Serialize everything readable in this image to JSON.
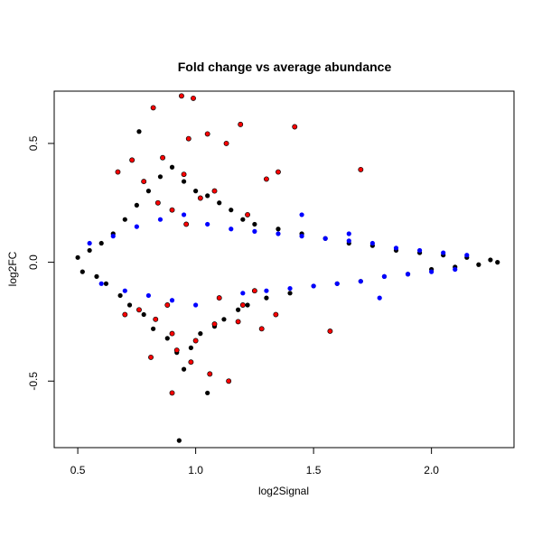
{
  "chart_data": {
    "type": "scatter",
    "title": "Fold change vs average abundance",
    "xlabel": "log2Signal",
    "ylabel": "log2FC",
    "xlim": [
      0.4,
      2.35
    ],
    "ylim": [
      -0.78,
      0.72
    ],
    "x_ticks": [
      {
        "value": 0.5,
        "label": "0.5"
      },
      {
        "value": 1.0,
        "label": "1.0"
      },
      {
        "value": 1.5,
        "label": "1.5"
      },
      {
        "value": 2.0,
        "label": "2.0"
      }
    ],
    "y_ticks": [
      {
        "value": -0.5,
        "label": "-0.5"
      },
      {
        "value": 0.0,
        "label": "0.0"
      },
      {
        "value": 0.5,
        "label": "0.5"
      }
    ],
    "grid": false,
    "legend": "none",
    "colors": {
      "black": "#000000",
      "blue": "#0000ff",
      "red": "#ff0000"
    },
    "series": [
      {
        "color": "#000000",
        "points": [
          [
            0.5,
            0.02
          ],
          [
            0.52,
            -0.04
          ],
          [
            0.55,
            0.05
          ],
          [
            0.58,
            -0.06
          ],
          [
            0.6,
            0.08
          ],
          [
            0.62,
            -0.09
          ],
          [
            0.65,
            0.12
          ],
          [
            0.68,
            -0.14
          ],
          [
            0.7,
            0.18
          ],
          [
            0.72,
            -0.18
          ],
          [
            0.75,
            0.24
          ],
          [
            0.78,
            -0.22
          ],
          [
            0.8,
            0.3
          ],
          [
            0.82,
            -0.28
          ],
          [
            0.85,
            0.36
          ],
          [
            0.88,
            -0.32
          ],
          [
            0.9,
            0.4
          ],
          [
            0.92,
            -0.38
          ],
          [
            0.95,
            0.34
          ],
          [
            0.98,
            -0.36
          ],
          [
            1.0,
            0.3
          ],
          [
            1.02,
            -0.3
          ],
          [
            1.05,
            0.28
          ],
          [
            1.08,
            -0.27
          ],
          [
            1.1,
            0.25
          ],
          [
            1.12,
            -0.24
          ],
          [
            1.15,
            0.22
          ],
          [
            1.18,
            -0.2
          ],
          [
            1.2,
            0.18
          ],
          [
            1.22,
            -0.18
          ],
          [
            1.25,
            0.16
          ],
          [
            1.3,
            -0.15
          ],
          [
            1.35,
            0.14
          ],
          [
            1.4,
            -0.13
          ],
          [
            1.45,
            0.12
          ],
          [
            1.5,
            -0.1
          ],
          [
            1.55,
            0.1
          ],
          [
            1.6,
            -0.09
          ],
          [
            1.65,
            0.08
          ],
          [
            1.7,
            -0.08
          ],
          [
            1.75,
            0.07
          ],
          [
            1.8,
            -0.06
          ],
          [
            1.85,
            0.05
          ],
          [
            1.9,
            -0.05
          ],
          [
            1.95,
            0.04
          ],
          [
            2.0,
            -0.03
          ],
          [
            2.05,
            0.03
          ],
          [
            2.1,
            -0.02
          ],
          [
            2.15,
            0.02
          ],
          [
            2.2,
            -0.01
          ],
          [
            2.25,
            0.01
          ],
          [
            2.28,
            0.0
          ],
          [
            0.93,
            -0.75
          ],
          [
            0.82,
            0.65
          ],
          [
            0.76,
            0.55
          ],
          [
            1.05,
            -0.55
          ],
          [
            0.95,
            -0.45
          ]
        ]
      },
      {
        "color": "#0000ff",
        "points": [
          [
            0.55,
            0.08
          ],
          [
            0.6,
            -0.09
          ],
          [
            0.65,
            0.11
          ],
          [
            0.7,
            -0.12
          ],
          [
            0.75,
            0.15
          ],
          [
            0.8,
            -0.14
          ],
          [
            0.85,
            0.18
          ],
          [
            0.9,
            -0.16
          ],
          [
            0.95,
            0.2
          ],
          [
            1.0,
            -0.18
          ],
          [
            1.05,
            0.16
          ],
          [
            1.1,
            -0.15
          ],
          [
            1.15,
            0.14
          ],
          [
            1.2,
            -0.13
          ],
          [
            1.25,
            0.13
          ],
          [
            1.3,
            -0.12
          ],
          [
            1.35,
            0.12
          ],
          [
            1.4,
            -0.11
          ],
          [
            1.45,
            0.11
          ],
          [
            1.5,
            -0.1
          ],
          [
            1.55,
            0.1
          ],
          [
            1.6,
            -0.09
          ],
          [
            1.65,
            0.09
          ],
          [
            1.7,
            -0.08
          ],
          [
            1.75,
            0.08
          ],
          [
            1.8,
            -0.06
          ],
          [
            1.85,
            0.06
          ],
          [
            1.9,
            -0.05
          ],
          [
            1.95,
            0.05
          ],
          [
            2.0,
            -0.04
          ],
          [
            2.05,
            0.04
          ],
          [
            2.1,
            -0.03
          ],
          [
            2.15,
            0.03
          ],
          [
            1.78,
            -0.15
          ],
          [
            1.65,
            0.12
          ],
          [
            1.45,
            0.2
          ]
        ]
      },
      {
        "color": "#ff0000",
        "points": [
          [
            0.94,
            0.7
          ],
          [
            0.99,
            0.69
          ],
          [
            0.82,
            0.65
          ],
          [
            1.19,
            0.58
          ],
          [
            1.42,
            0.57
          ],
          [
            1.05,
            0.54
          ],
          [
            0.97,
            0.52
          ],
          [
            1.13,
            0.5
          ],
          [
            0.86,
            0.44
          ],
          [
            1.7,
            0.39
          ],
          [
            1.35,
            0.38
          ],
          [
            0.95,
            0.37
          ],
          [
            1.3,
            0.35
          ],
          [
            0.73,
            0.43
          ],
          [
            0.67,
            0.38
          ],
          [
            0.78,
            0.34
          ],
          [
            1.08,
            0.3
          ],
          [
            1.02,
            0.27
          ],
          [
            0.84,
            0.25
          ],
          [
            0.9,
            0.22
          ],
          [
            1.22,
            0.2
          ],
          [
            0.96,
            0.16
          ],
          [
            0.76,
            -0.2
          ],
          [
            0.83,
            -0.24
          ],
          [
            0.9,
            -0.3
          ],
          [
            1.0,
            -0.33
          ],
          [
            1.08,
            -0.26
          ],
          [
            1.18,
            -0.25
          ],
          [
            1.28,
            -0.28
          ],
          [
            0.92,
            -0.37
          ],
          [
            0.81,
            -0.4
          ],
          [
            0.98,
            -0.42
          ],
          [
            1.06,
            -0.47
          ],
          [
            1.14,
            -0.5
          ],
          [
            0.9,
            -0.55
          ],
          [
            1.57,
            -0.29
          ],
          [
            1.34,
            -0.22
          ],
          [
            1.2,
            -0.18
          ],
          [
            0.7,
            -0.22
          ],
          [
            1.1,
            -0.15
          ],
          [
            1.25,
            -0.12
          ],
          [
            0.88,
            -0.18
          ]
        ]
      }
    ]
  }
}
